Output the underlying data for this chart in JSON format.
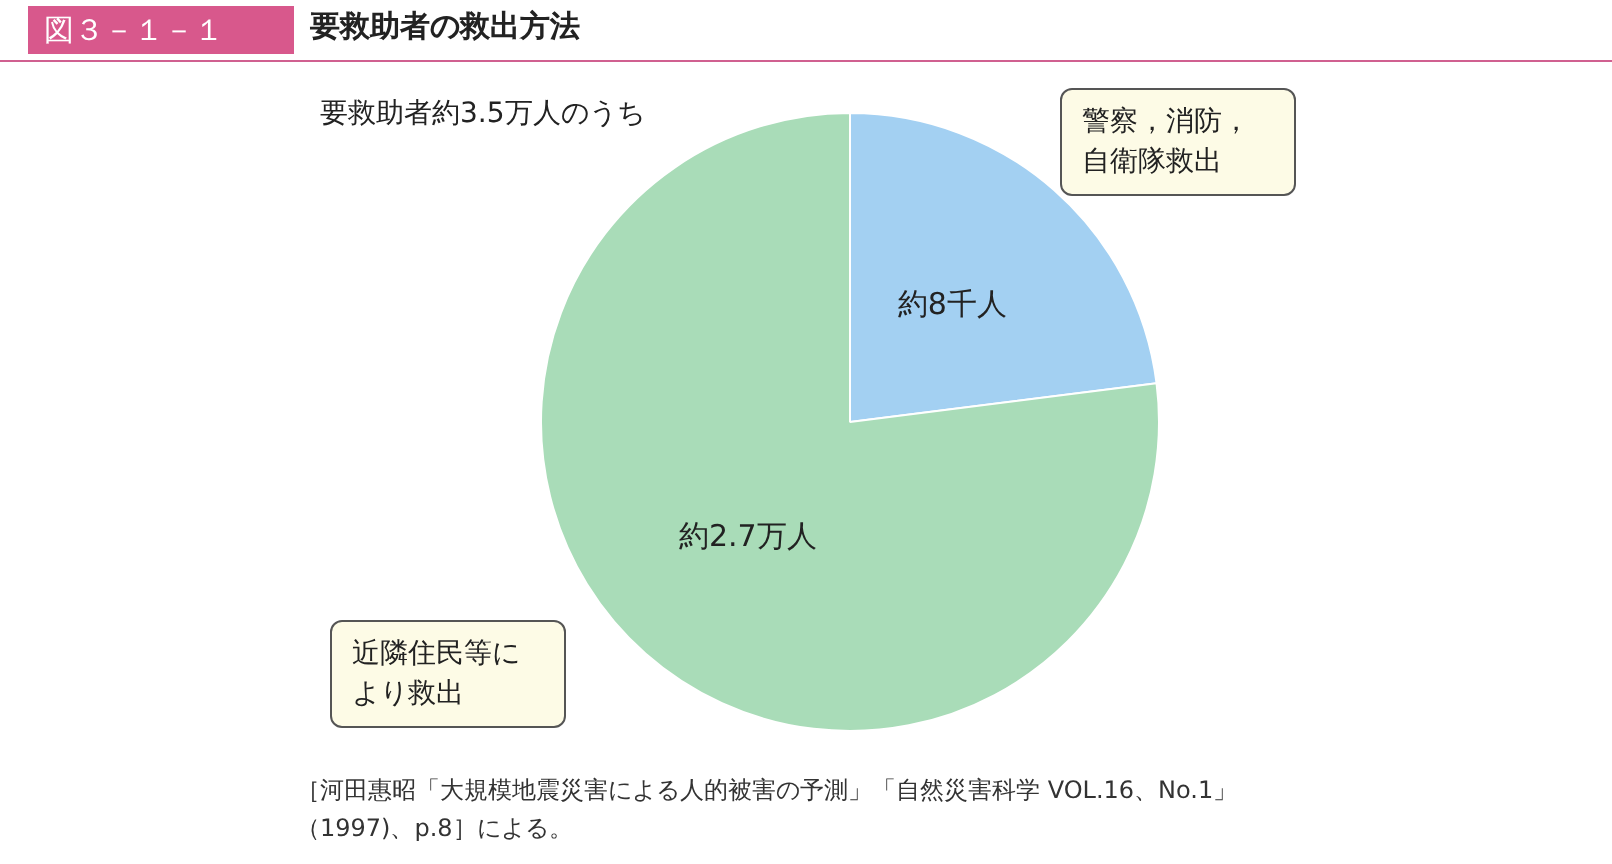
{
  "chart_data": {
    "type": "pie",
    "title": "要救助者の救出方法",
    "subtitle": "要救助者約3.5万人のうち",
    "categories": [
      "警察，消防，自衛隊救出",
      "近隣住民等により救出"
    ],
    "values": [
      23,
      77
    ],
    "colors": [
      "#a3d0f2",
      "#a9dcb8"
    ],
    "value_labels": [
      "約8千人",
      "約2.7万人"
    ],
    "legend": false,
    "annotations": [
      "図３－１－１",
      "［河田惠昭「大規模地震災害による人的被害の予測」「自然災害科学 VOL.16、No.1」（1997)、p.8］による。"
    ]
  }
}
